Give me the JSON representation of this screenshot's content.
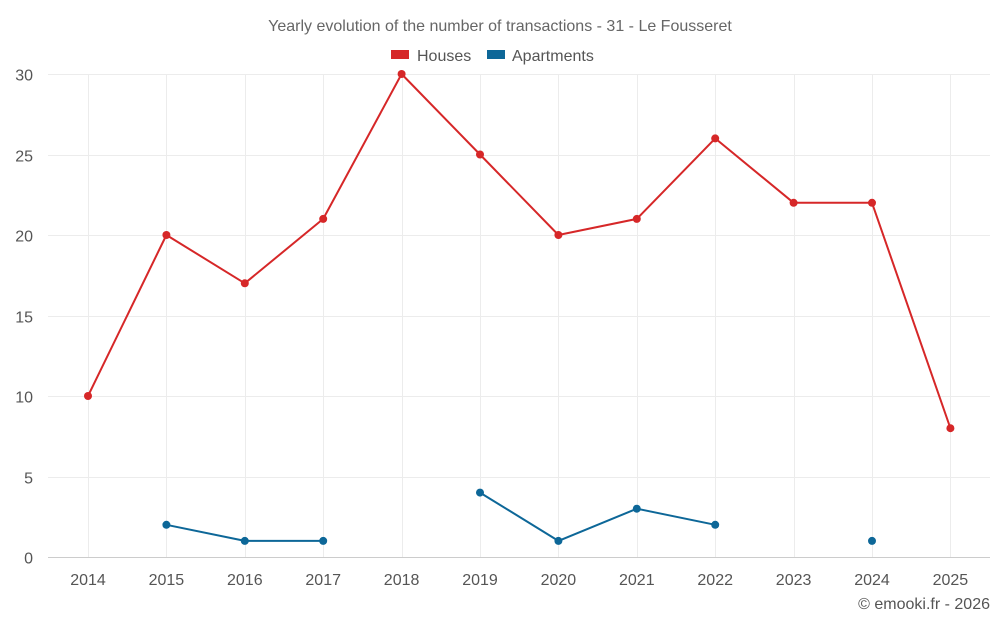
{
  "chart_data": {
    "type": "line",
    "title": "Yearly evolution of the number of transactions - 31 - Le Fousseret",
    "categories": [
      "2014",
      "2015",
      "2016",
      "2017",
      "2018",
      "2019",
      "2020",
      "2021",
      "2022",
      "2023",
      "2024",
      "2025"
    ],
    "series": [
      {
        "name": "Houses",
        "color": "#d62728",
        "values": [
          10,
          20,
          17,
          21,
          30,
          25,
          20,
          21,
          26,
          22,
          22,
          8
        ]
      },
      {
        "name": "Apartments",
        "color": "#0d6798",
        "values": [
          null,
          2,
          1,
          1,
          null,
          4,
          1,
          3,
          2,
          null,
          1,
          null
        ]
      }
    ],
    "ylim": [
      0,
      30
    ],
    "yticks": [
      0,
      5,
      10,
      15,
      20,
      25,
      30
    ],
    "xlabel": "",
    "ylabel": "",
    "grid": true,
    "legend": "top-center"
  },
  "credit": "© emooki.fr - 2026"
}
